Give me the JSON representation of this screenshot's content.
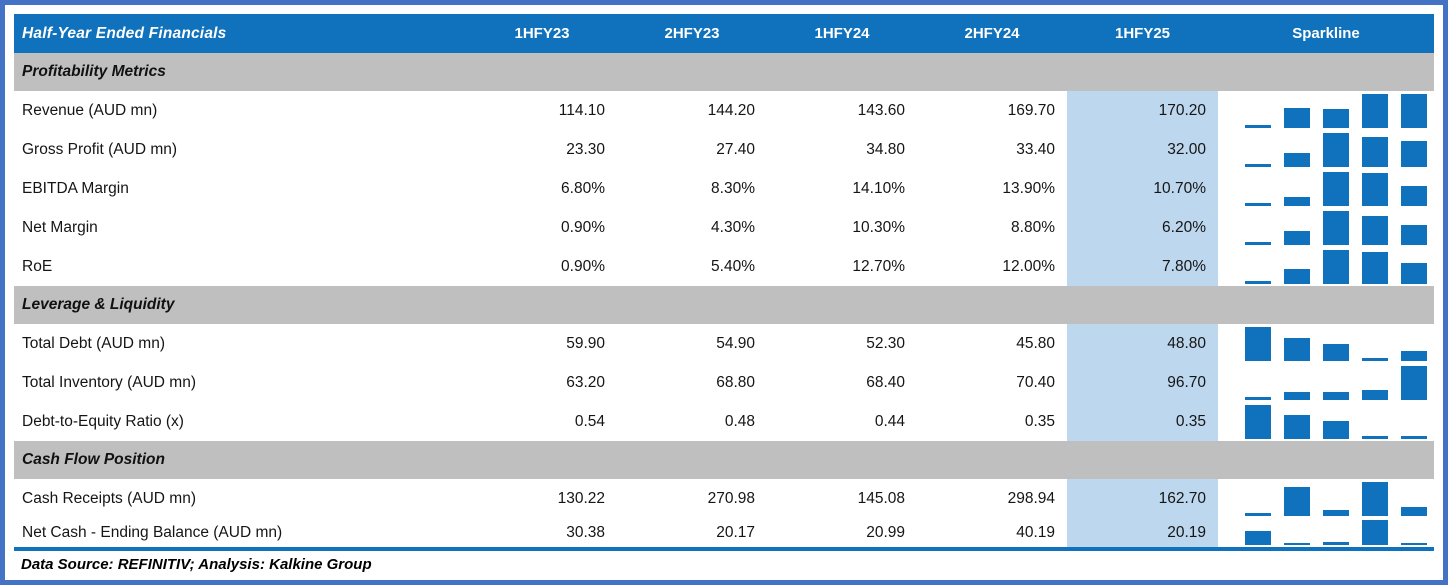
{
  "table": {
    "header": {
      "title": "Half-Year Ended Financials",
      "periods": [
        "1HFY23",
        "2HFY23",
        "1HFY24",
        "2HFY24",
        "1HFY25"
      ],
      "sparkline": "Sparkline",
      "highlighted_period": "1HFY25"
    },
    "sections": [
      {
        "title": "Profitability Metrics",
        "rows": [
          {
            "label": "Revenue (AUD mn)",
            "cells": [
              "114.10",
              "144.20",
              "143.60",
              "169.70",
              "170.20"
            ]
          },
          {
            "label": "Gross Profit (AUD mn)",
            "cells": [
              "23.30",
              "27.40",
              "34.80",
              "33.40",
              "32.00"
            ]
          },
          {
            "label": "EBITDA Margin",
            "cells": [
              "6.80%",
              "8.30%",
              "14.10%",
              "13.90%",
              "10.70%"
            ]
          },
          {
            "label": "Net Margin",
            "cells": [
              "0.90%",
              "4.30%",
              "10.30%",
              "8.80%",
              "6.20%"
            ]
          },
          {
            "label": "RoE",
            "cells": [
              "0.90%",
              "5.40%",
              "12.70%",
              "12.00%",
              "7.80%"
            ]
          }
        ]
      },
      {
        "title": "Leverage & Liquidity",
        "rows": [
          {
            "label": "Total Debt (AUD mn)",
            "cells": [
              "59.90",
              "54.90",
              "52.30",
              "45.80",
              "48.80"
            ]
          },
          {
            "label": "Total Inventory (AUD mn)",
            "cells": [
              "63.20",
              "68.80",
              "68.40",
              "70.40",
              "96.70"
            ]
          },
          {
            "label": "Debt-to-Equity Ratio (x)",
            "cells": [
              "0.54",
              "0.48",
              "0.44",
              "0.35",
              "0.35"
            ]
          }
        ]
      },
      {
        "title": "Cash Flow Position",
        "rows": [
          {
            "label": "Cash Receipts (AUD mn)",
            "cells": [
              "130.22",
              "270.98",
              "145.08",
              "298.94",
              "162.70"
            ]
          },
          {
            "label": "Net Cash - Ending Balance (AUD mn)",
            "cells": [
              "30.38",
              "20.17",
              "20.99",
              "40.19",
              "20.19"
            ]
          }
        ]
      }
    ]
  },
  "footer": {
    "source_note": "Data Source: REFINITIV; Analysis: Kalkine Group"
  },
  "colors": {
    "header_bg": "#1072BC",
    "section_bg": "#BFBFBF",
    "highlight_bg": "#BDD7EE",
    "bar": "#1072BC",
    "frame": "#4472C4"
  },
  "chart_data": {
    "type": "table",
    "title": "Half-Year Ended Financials",
    "categories": [
      "1HFY23",
      "2HFY23",
      "1HFY24",
      "2HFY24",
      "1HFY25"
    ],
    "legend_position": "none",
    "grid": false,
    "sparkline_type": "bar",
    "sparklines": [
      {
        "label": "Revenue (AUD mn)",
        "values": [
          114.1,
          144.2,
          143.6,
          169.7,
          170.2
        ]
      },
      {
        "label": "Gross Profit (AUD mn)",
        "values": [
          23.3,
          27.4,
          34.8,
          33.4,
          32.0
        ]
      },
      {
        "label": "EBITDA Margin (%)",
        "values": [
          6.8,
          8.3,
          14.1,
          13.9,
          10.7
        ]
      },
      {
        "label": "Net Margin (%)",
        "values": [
          0.9,
          4.3,
          10.3,
          8.8,
          6.2
        ]
      },
      {
        "label": "RoE (%)",
        "values": [
          0.9,
          5.4,
          12.7,
          12.0,
          7.8
        ]
      },
      {
        "label": "Total Debt (AUD mn)",
        "values": [
          59.9,
          54.9,
          52.3,
          45.8,
          48.8
        ]
      },
      {
        "label": "Total Inventory (AUD mn)",
        "values": [
          63.2,
          68.8,
          68.4,
          70.4,
          96.7
        ]
      },
      {
        "label": "Debt-to-Equity Ratio (x)",
        "values": [
          0.54,
          0.48,
          0.44,
          0.35,
          0.35
        ]
      },
      {
        "label": "Cash Receipts (AUD mn)",
        "values": [
          130.22,
          270.98,
          145.08,
          298.94,
          162.7
        ]
      },
      {
        "label": "Net Cash - Ending Balance (AUD mn)",
        "values": [
          30.38,
          20.17,
          20.99,
          40.19,
          20.19
        ]
      }
    ]
  }
}
